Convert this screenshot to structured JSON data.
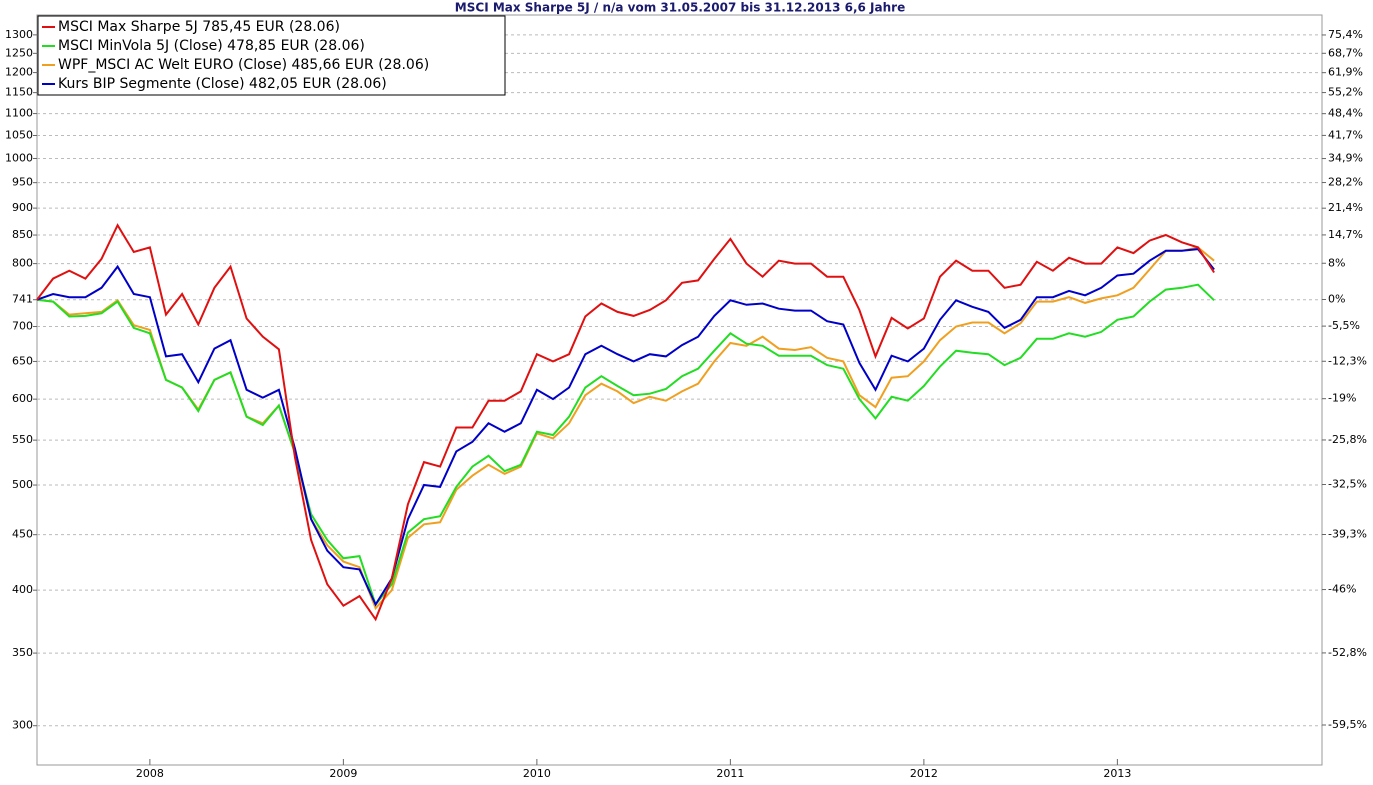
{
  "chart_data": {
    "type": "line",
    "title": "MSCI Max Sharpe 5J / n/a vom 31.05.2007 bis 31.12.2013 6,6 Jahre",
    "categories": [
      null,
      null,
      null,
      null,
      null,
      null,
      null,
      "2008",
      null,
      null,
      null,
      null,
      null,
      null,
      null,
      null,
      null,
      null,
      null,
      "2009",
      null,
      null,
      null,
      null,
      null,
      null,
      null,
      null,
      null,
      null,
      null,
      "2010",
      null,
      null,
      null,
      null,
      null,
      null,
      null,
      null,
      null,
      null,
      null,
      "2011",
      null,
      null,
      null,
      null,
      null,
      null,
      null,
      null,
      null,
      null,
      null,
      "2012",
      null,
      null,
      null,
      null,
      null,
      null,
      null,
      null,
      null,
      null,
      null,
      "2013",
      null,
      null,
      null,
      null,
      null,
      null,
      null,
      null,
      null,
      null,
      null,
      null
    ],
    "series": [
      {
        "name": "MSCI Max Sharpe 5J 785,45 EUR (28.06)",
        "color": "#e01010",
        "values": [
          741,
          775,
          788,
          775,
          808,
          868,
          820,
          828,
          718,
          750,
          703,
          760,
          795,
          712,
          685,
          667,
          530,
          445,
          405,
          387,
          395,
          376,
          410,
          480,
          525,
          520,
          565,
          565,
          598,
          598,
          610,
          660,
          650,
          660,
          715,
          735,
          722,
          716,
          725,
          740,
          768,
          772,
          808,
          843,
          800,
          778,
          805,
          800,
          800,
          778,
          778,
          725,
          657,
          713,
          697,
          712,
          778,
          805,
          788,
          788,
          760,
          765,
          803,
          788,
          810,
          800,
          800,
          828,
          818,
          840,
          850,
          837,
          828,
          785,
          null,
          null,
          null,
          null,
          null,
          null
        ]
      },
      {
        "name": "MSCI MinVola 5J (Close) 478,85 EUR (28.06)",
        "color": "#22dd22",
        "values": [
          741,
          738,
          715,
          716,
          720,
          738,
          698,
          690,
          625,
          615,
          585,
          625,
          635,
          578,
          568,
          592,
          535,
          470,
          445,
          428,
          430,
          388,
          405,
          452,
          465,
          468,
          498,
          520,
          532,
          515,
          522,
          560,
          556,
          578,
          615,
          630,
          617,
          605,
          607,
          613,
          630,
          640,
          665,
          690,
          675,
          672,
          658,
          658,
          658,
          645,
          640,
          600,
          576,
          603,
          598,
          617,
          643,
          665,
          662,
          660,
          645,
          655,
          682,
          682,
          690,
          685,
          692,
          710,
          715,
          738,
          757,
          760,
          765,
          740,
          null,
          null,
          null,
          null,
          null,
          null
        ]
      },
      {
        "name": "WPF_MSCI AC Welt EURO (Close) 485,66 EUR (28.06)",
        "color": "#f0a020",
        "values": [
          741,
          738,
          718,
          720,
          722,
          740,
          702,
          695,
          625,
          615,
          587,
          625,
          635,
          578,
          570,
          592,
          535,
          465,
          440,
          425,
          420,
          385,
          400,
          447,
          460,
          462,
          495,
          510,
          522,
          512,
          520,
          558,
          552,
          570,
          605,
          620,
          610,
          595,
          603,
          598,
          610,
          620,
          650,
          676,
          672,
          685,
          668,
          666,
          670,
          655,
          650,
          605,
          590,
          628,
          630,
          650,
          680,
          700,
          706,
          706,
          690,
          705,
          738,
          738,
          745,
          736,
          743,
          748,
          760,
          790,
          822,
          822,
          828,
          805,
          null,
          null,
          null,
          null,
          null,
          null
        ]
      },
      {
        "name": "Kurs BIP Segmente (Close) 482,05 EUR (28.06)",
        "color": "#0000c8",
        "values": [
          741,
          750,
          745,
          745,
          760,
          795,
          750,
          745,
          657,
          660,
          622,
          668,
          680,
          612,
          602,
          612,
          540,
          465,
          435,
          420,
          418,
          388,
          410,
          465,
          500,
          498,
          537,
          548,
          570,
          560,
          570,
          612,
          600,
          615,
          660,
          672,
          660,
          650,
          660,
          657,
          673,
          685,
          716,
          740,
          733,
          735,
          727,
          724,
          724,
          708,
          703,
          648,
          612,
          658,
          650,
          668,
          710,
          740,
          730,
          722,
          698,
          710,
          745,
          745,
          755,
          748,
          760,
          780,
          783,
          805,
          822,
          822,
          825,
          790,
          null,
          null,
          null,
          null,
          null,
          null
        ]
      }
    ],
    "log_scale": true,
    "grid": true,
    "ylim": [
      276,
      1356
    ],
    "yticks": [
      1300,
      1250,
      1200,
      1150,
      1100,
      1050,
      1000,
      950,
      900,
      850,
      800,
      741,
      700,
      650,
      600,
      550,
      500,
      450,
      400,
      350,
      300
    ],
    "y2lim": [
      -62.8,
      83.0
    ],
    "y2ticks": [
      {
        "value": 75.4,
        "label": "75,4%"
      },
      {
        "value": 68.7,
        "label": "68,7%"
      },
      {
        "value": 61.9,
        "label": "61,9%"
      },
      {
        "value": 55.2,
        "label": "55,2%"
      },
      {
        "value": 48.4,
        "label": "48,4%"
      },
      {
        "value": 41.7,
        "label": "41,7%"
      },
      {
        "value": 34.9,
        "label": "34,9%"
      },
      {
        "value": 28.2,
        "label": "28,2%"
      },
      {
        "value": 21.4,
        "label": "21,4%"
      },
      {
        "value": 14.7,
        "label": "14,7%"
      },
      {
        "value": 8,
        "label": "8%"
      },
      {
        "value": 0,
        "label": "0%"
      },
      {
        "value": -5.5,
        "label": "-5,5%"
      },
      {
        "value": -12.3,
        "label": "-12,3%"
      },
      {
        "value": -19,
        "label": "-19%"
      },
      {
        "value": -25.8,
        "label": "-25,8%"
      },
      {
        "value": -32.5,
        "label": "-32,5%"
      },
      {
        "value": -39.3,
        "label": "-39,3%"
      },
      {
        "value": -46,
        "label": "-46%"
      },
      {
        "value": -52.8,
        "label": "-52,8%"
      },
      {
        "value": -59.5,
        "label": "-59,5%"
      }
    ]
  }
}
